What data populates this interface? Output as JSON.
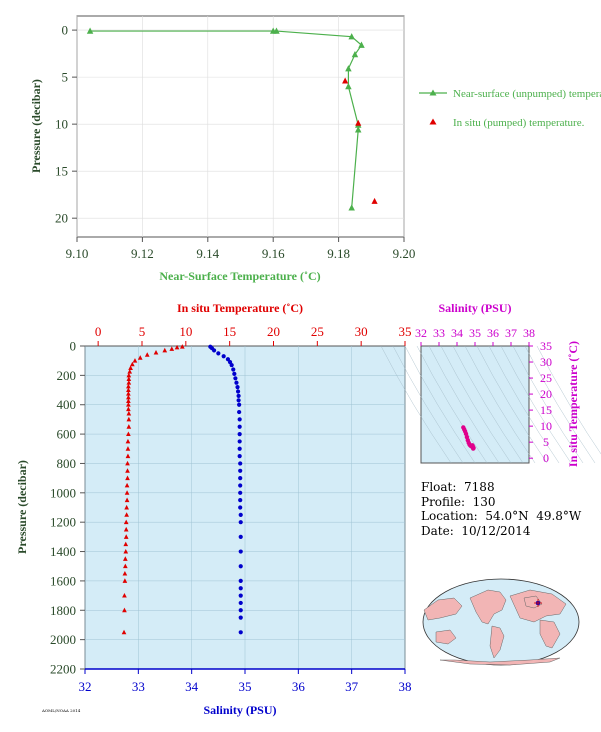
{
  "info": {
    "float": "Float:  7188",
    "profile": "Profile:  130",
    "location": "Location:  54.0°N  49.8°W",
    "date": "Date:  10/12/2014"
  },
  "footnote": "AOML/NOAA 2014",
  "colors": {
    "green": "#4cb04c",
    "red": "#e00000",
    "blue": "#0000cc",
    "magenta": "#cc00cc",
    "axis_dark": "#2a4a2a",
    "panel_bg": "#d4ecf7"
  },
  "chart_data": [
    {
      "type": "line",
      "name": "near-surface-temperature-panel",
      "xlabel": "Near-Surface Temperature (˚C)",
      "ylabel": "Pressure (decibar)",
      "xlim": [
        9.1,
        9.2
      ],
      "ylim": [
        22,
        -1.5
      ],
      "x_ticks": [
        9.1,
        9.12,
        9.14,
        9.16,
        9.18,
        9.2
      ],
      "x_tick_labels": [
        "9.10",
        "9.12",
        "9.14",
        "9.16",
        "9.18",
        "9.20"
      ],
      "y_ticks": [
        0,
        5,
        10,
        15,
        20
      ],
      "y_tick_labels": [
        "0",
        "5",
        "10",
        "15",
        "20"
      ],
      "legend_position": "right",
      "series": [
        {
          "name": "Near-surface (unpumped) temperature.",
          "marker": "triangle",
          "connected": true,
          "x": [
            9.104,
            9.16,
            9.161,
            9.184,
            9.187,
            9.185,
            9.183,
            9.183,
            9.186,
            9.186,
            9.184
          ],
          "y": [
            0.1,
            0.1,
            0.1,
            0.7,
            1.6,
            2.6,
            4.1,
            6.0,
            10.1,
            10.6,
            18.9
          ]
        },
        {
          "name": "In situ (pumped) temperature.",
          "marker": "triangle",
          "connected": false,
          "x": [
            9.182,
            9.186,
            9.191
          ],
          "y": [
            5.4,
            9.9,
            18.2
          ]
        }
      ]
    },
    {
      "type": "scatter",
      "name": "profile-panel",
      "ylabel": "Pressure (decibar)",
      "ylim": [
        2200,
        0
      ],
      "y_ticks": [
        0,
        200,
        400,
        600,
        800,
        1000,
        1200,
        1400,
        1600,
        1800,
        2000,
        2200
      ],
      "y_tick_labels": [
        "0",
        "200",
        "400",
        "600",
        "800",
        "1000",
        "1200",
        "1400",
        "1600",
        "1800",
        "2000",
        "2200"
      ],
      "top_axis": {
        "label": "In situ Temperature (˚C)",
        "lim": [
          -1.5,
          35
        ],
        "ticks": [
          0,
          5,
          10,
          15,
          20,
          25,
          30,
          35
        ],
        "tick_labels": [
          "0",
          "5",
          "10",
          "15",
          "20",
          "25",
          "30",
          "35"
        ]
      },
      "bottom_axis": {
        "label": "Salinity (PSU)",
        "lim": [
          32,
          38
        ],
        "ticks": [
          32,
          33,
          34,
          35,
          36,
          37,
          38
        ],
        "tick_labels": [
          "32",
          "33",
          "34",
          "35",
          "36",
          "37",
          "38"
        ]
      },
      "series": [
        {
          "name": "In situ Temperature",
          "axis": "top",
          "marker": "triangle",
          "x": [
            9.6,
            9.0,
            8.4,
            7.6,
            6.6,
            5.6,
            4.8,
            4.2,
            3.9,
            3.7,
            3.6,
            3.5,
            3.5,
            3.5,
            3.45,
            3.45,
            3.45,
            3.45,
            3.45,
            3.45,
            3.45,
            3.5,
            3.5,
            3.5,
            3.45,
            3.4,
            3.4,
            3.4,
            3.35,
            3.35,
            3.35,
            3.3,
            3.3,
            3.3,
            3.25,
            3.25,
            3.2,
            3.2,
            3.2,
            3.15,
            3.15,
            3.1,
            3.1,
            3.05,
            3.05,
            3.0,
            3.0,
            2.95
          ],
          "y": [
            5,
            10,
            20,
            30,
            45,
            60,
            80,
            100,
            125,
            150,
            175,
            200,
            225,
            250,
            275,
            300,
            325,
            350,
            375,
            400,
            430,
            460,
            500,
            550,
            600,
            650,
            700,
            750,
            800,
            850,
            900,
            950,
            1000,
            1050,
            1100,
            1150,
            1200,
            1250,
            1300,
            1350,
            1400,
            1450,
            1500,
            1550,
            1600,
            1700,
            1800,
            1950
          ]
        },
        {
          "name": "Salinity",
          "axis": "bottom",
          "marker": "circle",
          "x": [
            34.35,
            34.38,
            34.42,
            34.5,
            34.6,
            34.68,
            34.72,
            34.75,
            34.78,
            34.8,
            34.82,
            34.84,
            34.86,
            34.87,
            34.88,
            34.88,
            34.89,
            34.89,
            34.9,
            34.9,
            34.9,
            34.9,
            34.9,
            34.9,
            34.91,
            34.91,
            34.91,
            34.91,
            34.91,
            34.91,
            34.91,
            34.92,
            34.92,
            34.92,
            34.92,
            34.92,
            34.92,
            34.92,
            34.92,
            34.92,
            34.92,
            34.92,
            34.92
          ],
          "y": [
            5,
            15,
            30,
            50,
            70,
            90,
            110,
            130,
            160,
            190,
            220,
            250,
            280,
            310,
            340,
            370,
            400,
            450,
            500,
            550,
            600,
            650,
            700,
            750,
            800,
            850,
            900,
            950,
            1000,
            1050,
            1100,
            1150,
            1200,
            1300,
            1400,
            1500,
            1600,
            1650,
            1700,
            1750,
            1800,
            1850,
            1950
          ]
        }
      ]
    },
    {
      "type": "scatter",
      "name": "ts-diagram-panel",
      "xlabel": "Salinity (PSU)",
      "ylabel": "In situ Temperature (˚C)",
      "xlim": [
        32,
        38
      ],
      "ylim": [
        -1.5,
        35
      ],
      "x_ticks": [
        32,
        33,
        34,
        35,
        36,
        37,
        38
      ],
      "x_tick_labels": [
        "32",
        "33",
        "34",
        "35",
        "36",
        "37",
        "38"
      ],
      "y_ticks": [
        0,
        5,
        10,
        15,
        20,
        25,
        30,
        35
      ],
      "y_tick_labels": [
        "0",
        "5",
        "10",
        "15",
        "20",
        "25",
        "30",
        "35"
      ],
      "series": [
        {
          "name": "T-S",
          "marker": "circle",
          "x": [
            34.35,
            34.4,
            34.45,
            34.5,
            34.55,
            34.6,
            34.65,
            34.7,
            34.75,
            34.8,
            34.85,
            34.88,
            34.9,
            34.92,
            34.9,
            34.88,
            34.86
          ],
          "y": [
            9.6,
            9.0,
            8.4,
            7.6,
            6.6,
            5.6,
            4.8,
            4.2,
            3.9,
            3.7,
            3.5,
            3.45,
            3.4,
            3.2,
            3.0,
            3.6,
            4.0
          ]
        }
      ]
    }
  ]
}
